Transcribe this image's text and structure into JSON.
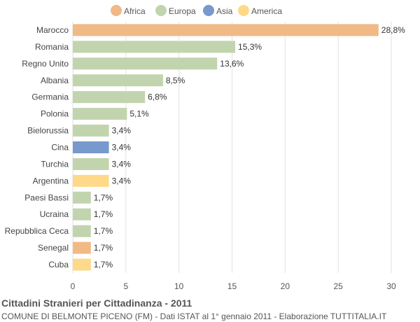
{
  "chart_data": {
    "type": "bar",
    "orientation": "horizontal",
    "title": "Cittadini Stranieri per Cittadinanza - 2011",
    "subtitle": "COMUNE DI BELMONTE PICENO (FM) - Dati ISTAT al 1° gennaio 2011 - Elaborazione TUTTITALIA.IT",
    "xlim": [
      0,
      30
    ],
    "xticks": [
      0,
      5,
      10,
      15,
      20,
      25,
      30
    ],
    "grid": true,
    "legend_position": "top",
    "legend": [
      {
        "name": "Africa",
        "color": "#f0b986"
      },
      {
        "name": "Europa",
        "color": "#c2d4ae"
      },
      {
        "name": "Asia",
        "color": "#7799cc"
      },
      {
        "name": "America",
        "color": "#fed989"
      }
    ],
    "bars": [
      {
        "category": "Marocco",
        "value": 28.8,
        "label": "28,8%",
        "group": "Africa"
      },
      {
        "category": "Romania",
        "value": 15.3,
        "label": "15,3%",
        "group": "Europa"
      },
      {
        "category": "Regno Unito",
        "value": 13.6,
        "label": "13,6%",
        "group": "Europa"
      },
      {
        "category": "Albania",
        "value": 8.5,
        "label": "8,5%",
        "group": "Europa"
      },
      {
        "category": "Germania",
        "value": 6.8,
        "label": "6,8%",
        "group": "Europa"
      },
      {
        "category": "Polonia",
        "value": 5.1,
        "label": "5,1%",
        "group": "Europa"
      },
      {
        "category": "Bielorussia",
        "value": 3.4,
        "label": "3,4%",
        "group": "Europa"
      },
      {
        "category": "Cina",
        "value": 3.4,
        "label": "3,4%",
        "group": "Asia"
      },
      {
        "category": "Turchia",
        "value": 3.4,
        "label": "3,4%",
        "group": "Europa"
      },
      {
        "category": "Argentina",
        "value": 3.4,
        "label": "3,4%",
        "group": "America"
      },
      {
        "category": "Paesi Bassi",
        "value": 1.7,
        "label": "1,7%",
        "group": "Europa"
      },
      {
        "category": "Ucraina",
        "value": 1.7,
        "label": "1,7%",
        "group": "Europa"
      },
      {
        "category": "Repubblica Ceca",
        "value": 1.7,
        "label": "1,7%",
        "group": "Europa"
      },
      {
        "category": "Senegal",
        "value": 1.7,
        "label": "1,7%",
        "group": "Africa"
      },
      {
        "category": "Cuba",
        "value": 1.7,
        "label": "1,7%",
        "group": "America"
      }
    ]
  }
}
